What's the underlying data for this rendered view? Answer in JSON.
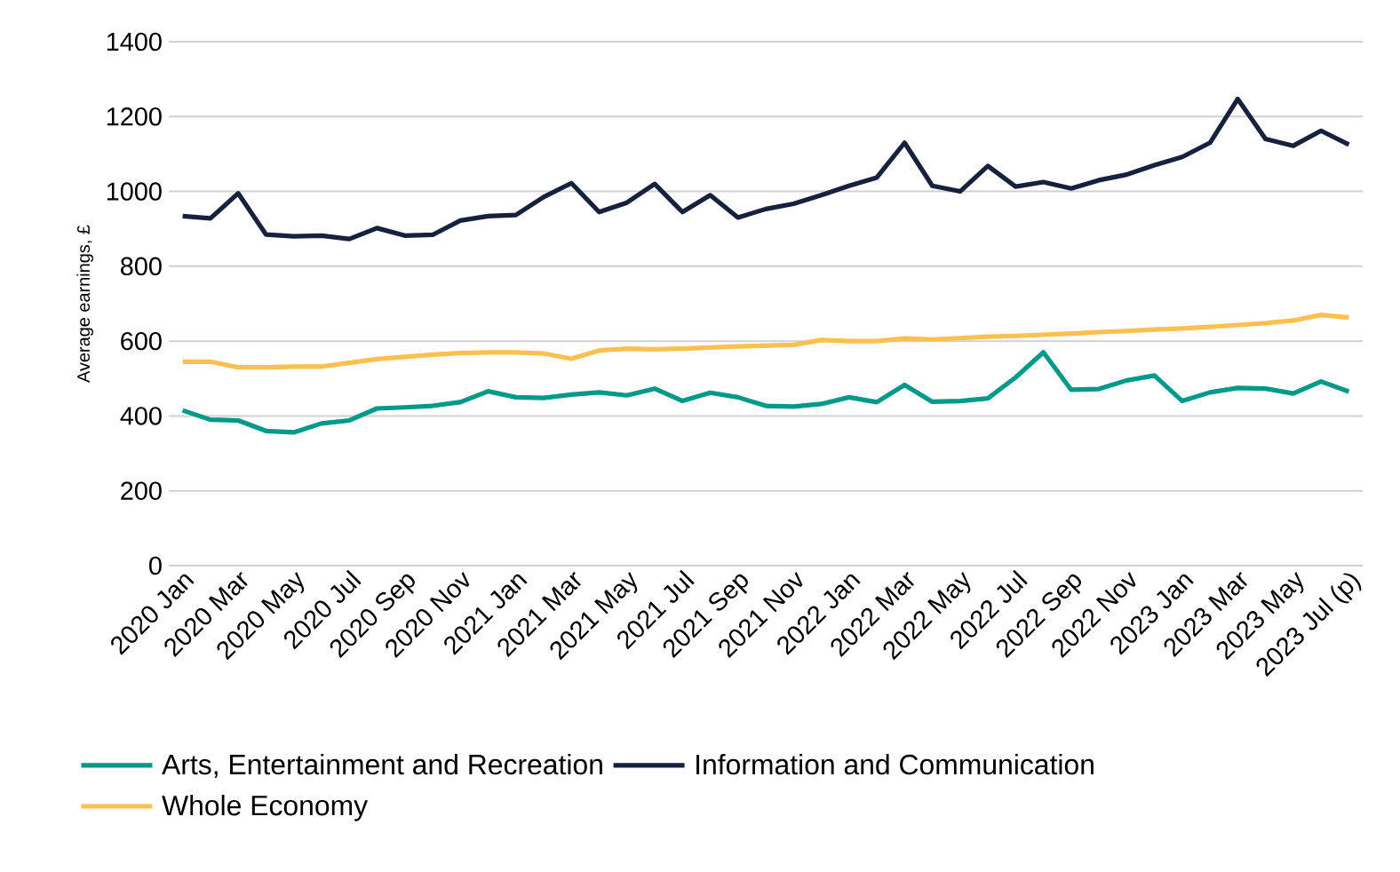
{
  "chart_data": {
    "type": "line",
    "ylabel": "Average earnings, £",
    "categories": [
      "2020 Jan",
      null,
      "2020 Mar",
      null,
      "2020 May",
      null,
      "2020 Jul",
      null,
      "2020 Sep",
      null,
      "2020 Nov",
      null,
      "2021 Jan",
      null,
      "2021 Mar",
      null,
      "2021 May",
      null,
      "2021 Jul",
      null,
      "2021 Sep",
      null,
      "2021 Nov",
      null,
      "2022 Jan",
      null,
      "2022 Mar",
      null,
      "2022 May",
      null,
      "2022 Jul",
      null,
      "2022 Sep",
      null,
      "2022 Nov",
      null,
      "2023 Jan",
      null,
      "2023 Mar",
      null,
      "2023 May",
      null,
      "2023 Jul (p)"
    ],
    "series": [
      {
        "name": "Arts, Entertainment and Recreation",
        "color": "#00998a",
        "values": [
          415,
          390,
          388,
          360,
          356,
          380,
          388,
          420,
          423,
          427,
          437,
          466,
          450,
          448,
          457,
          463,
          455,
          473,
          440,
          462,
          450,
          427,
          425,
          432,
          450,
          437,
          483,
          438,
          440,
          447,
          503,
          570,
          470,
          472,
          495,
          508,
          440,
          463,
          475,
          473,
          460,
          492,
          465
        ]
      },
      {
        "name": "Information and Communication",
        "color": "#16213d",
        "values": [
          934,
          928,
          995,
          885,
          880,
          882,
          873,
          902,
          882,
          884,
          922,
          934,
          937,
          985,
          1022,
          945,
          970,
          1020,
          945,
          990,
          930,
          953,
          967,
          990,
          1015,
          1037,
          1130,
          1015,
          1000,
          1068,
          1013,
          1025,
          1008,
          1030,
          1045,
          1070,
          1092,
          1130,
          1247,
          1140,
          1122,
          1162,
          1125
        ]
      },
      {
        "name": "Whole Economy",
        "color": "#fcc050",
        "values": [
          545,
          545,
          530,
          530,
          532,
          532,
          542,
          552,
          558,
          564,
          568,
          570,
          570,
          567,
          553,
          575,
          580,
          578,
          580,
          583,
          586,
          588,
          590,
          603,
          600,
          600,
          607,
          604,
          608,
          612,
          614,
          617,
          620,
          624,
          627,
          631,
          634,
          638,
          643,
          648,
          655,
          670,
          663
        ]
      }
    ],
    "ylim": [
      0,
      1400
    ],
    "yticks": [
      0,
      200,
      400,
      600,
      800,
      1000,
      1200,
      1400
    ],
    "grid": "y",
    "legend": "bottom",
    "marker": "none",
    "line_style": "solid"
  }
}
